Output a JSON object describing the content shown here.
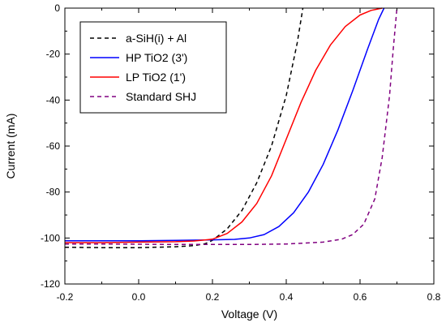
{
  "chart_data": {
    "type": "line",
    "xlabel": "Voltage (V)",
    "ylabel": "Current (mA)",
    "xlim": [
      -0.2,
      0.8
    ],
    "ylim": [
      -120,
      0
    ],
    "x_ticks": [
      -0.2,
      0.0,
      0.2,
      0.4,
      0.6,
      0.8
    ],
    "x_tick_labels": [
      "-0.2",
      "0.0",
      "0.2",
      "0.4",
      "0.6",
      "0.8"
    ],
    "y_ticks": [
      0,
      -20,
      -40,
      -60,
      -80,
      -100,
      -120
    ],
    "y_tick_labels": [
      "0",
      "-20",
      "-40",
      "-60",
      "-80",
      "-100",
      "-120"
    ],
    "grid": false,
    "legend_position": "top-left",
    "series": [
      {
        "name": "a-SiH(i) + Al",
        "color": "#000000",
        "dash": "dashed",
        "x": [
          -0.2,
          -0.1,
          0.0,
          0.1,
          0.15,
          0.18,
          0.2,
          0.24,
          0.28,
          0.32,
          0.36,
          0.4,
          0.43,
          0.445
        ],
        "y": [
          -104,
          -104.2,
          -104.2,
          -103.8,
          -103.3,
          -102.5,
          -101,
          -96,
          -88,
          -76,
          -60,
          -38,
          -15,
          0
        ]
      },
      {
        "name": "HP TiO2 (3')",
        "color": "#0000ff",
        "dash": "solid",
        "x": [
          -0.2,
          -0.1,
          0.0,
          0.1,
          0.2,
          0.26,
          0.3,
          0.34,
          0.38,
          0.42,
          0.46,
          0.5,
          0.54,
          0.58,
          0.62,
          0.65,
          0.665
        ],
        "y": [
          -101.2,
          -101.2,
          -101.2,
          -101,
          -100.8,
          -100.6,
          -100,
          -98.5,
          -95,
          -89,
          -80,
          -68,
          -53,
          -36,
          -18,
          -5,
          0
        ]
      },
      {
        "name": "LP TiO2 (1')",
        "color": "#ff0000",
        "dash": "solid",
        "x": [
          -0.2,
          -0.1,
          0.0,
          0.1,
          0.15,
          0.2,
          0.24,
          0.28,
          0.32,
          0.36,
          0.4,
          0.44,
          0.48,
          0.52,
          0.56,
          0.6,
          0.63,
          0.66
        ],
        "y": [
          -102,
          -102,
          -101.8,
          -101.6,
          -101.3,
          -100.5,
          -98,
          -93,
          -85,
          -73,
          -57,
          -41,
          -27,
          -16,
          -8,
          -3,
          -1,
          0
        ]
      },
      {
        "name": "Standard SHJ",
        "color": "#800080",
        "dash": "dashed",
        "x": [
          -0.2,
          -0.1,
          0.0,
          0.1,
          0.2,
          0.3,
          0.4,
          0.5,
          0.55,
          0.58,
          0.61,
          0.64,
          0.66,
          0.68,
          0.69,
          0.7
        ],
        "y": [
          -102.6,
          -102.6,
          -102.7,
          -102.8,
          -102.8,
          -102.8,
          -102.6,
          -101.8,
          -100.5,
          -98.5,
          -94,
          -83,
          -65,
          -38,
          -18,
          0
        ]
      }
    ]
  }
}
